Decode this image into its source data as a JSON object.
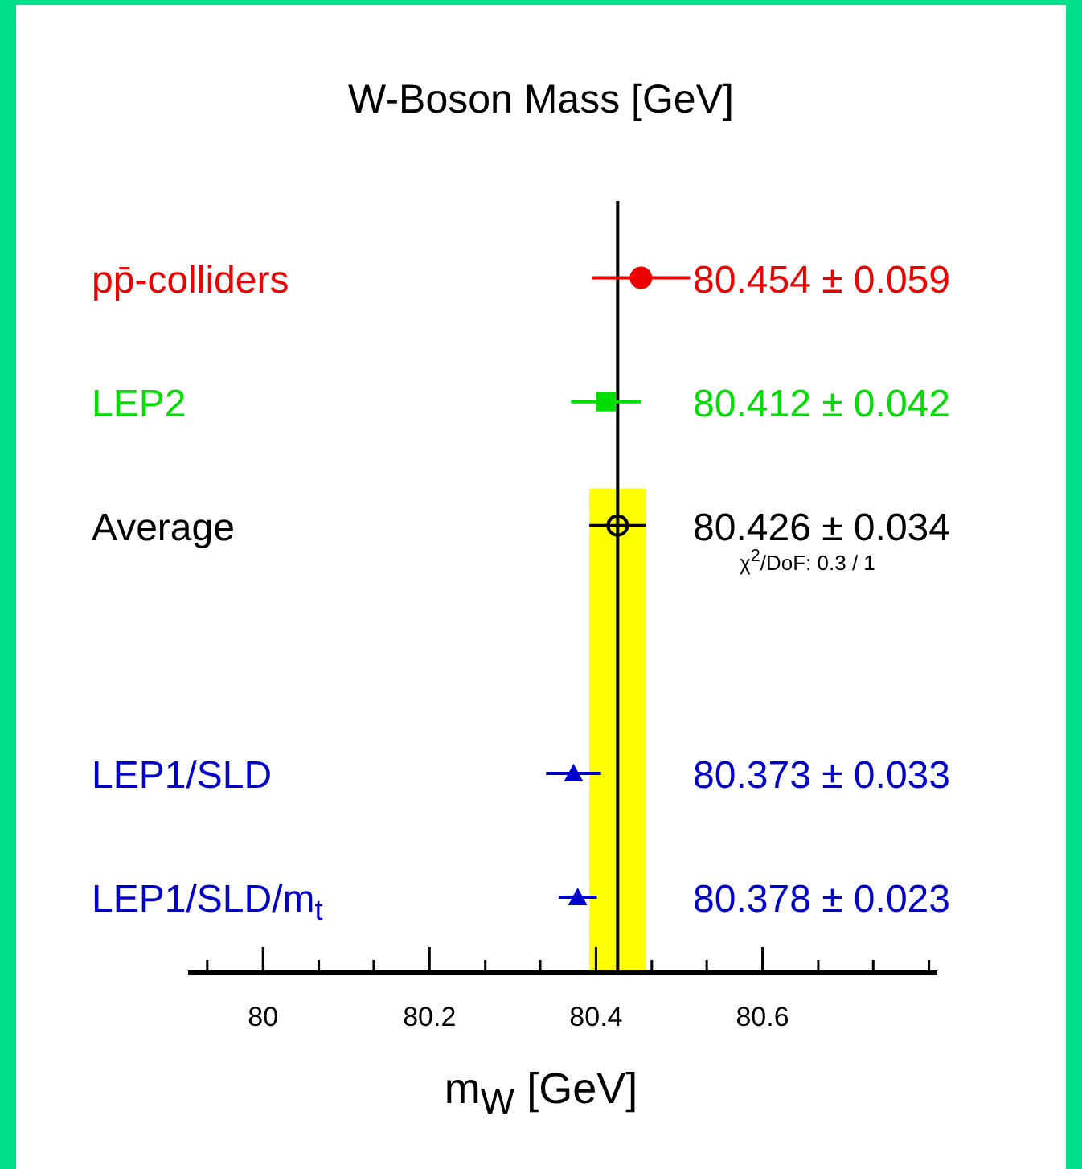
{
  "chart_data": {
    "type": "scatter",
    "orientation": "horizontal",
    "title": "W-Boson Mass  [GeV]",
    "xlabel": "m$_{W}$  [GeV]",
    "categories": [
      "pp̄-colliders",
      "LEP2",
      "Average",
      null,
      "LEP1/SLD",
      "LEP1/SLD/m$_{t}$"
    ],
    "series": [
      {
        "color": "#ee0000",
        "marker": "circle",
        "values": [
          80.454,
          null,
          null,
          null,
          null,
          null
        ],
        "errors": [
          0.059,
          null,
          null,
          null,
          null,
          null
        ],
        "value_labels": [
          "80.454 ± 0.059",
          null,
          null,
          null,
          null,
          null
        ]
      },
      {
        "color": "#00dd00",
        "marker": "square",
        "values": [
          null,
          80.412,
          null,
          null,
          null,
          null
        ],
        "errors": [
          null,
          0.042,
          null,
          null,
          null,
          null
        ],
        "value_labels": [
          null,
          "80.412 ± 0.042",
          null,
          null,
          null,
          null
        ]
      },
      {
        "color": "#000000",
        "marker": "circle",
        "values": [
          null,
          null,
          80.426,
          null,
          null,
          null
        ],
        "errors": [
          null,
          null,
          0.034,
          null,
          null,
          null
        ],
        "value_labels": [
          null,
          null,
          "80.426 ± 0.034",
          null,
          null,
          null
        ]
      },
      {
        "color": "#0000cc",
        "marker": "triangle",
        "values": [
          null,
          null,
          null,
          null,
          80.373,
          80.378
        ],
        "errors": [
          null,
          null,
          null,
          null,
          0.033,
          0.023
        ],
        "value_labels": [
          null,
          null,
          null,
          null,
          "80.373 ± 0.033",
          "80.378 ± 0.023"
        ]
      }
    ],
    "xlim": [
      79.91,
      80.81
    ],
    "xticks": [
      {
        "value": 79.933,
        "label": null
      },
      80,
      {
        "value": 80.067,
        "label": null
      },
      {
        "value": 80.133,
        "label": null
      },
      80.2,
      {
        "value": 80.267,
        "label": null
      },
      {
        "value": 80.333,
        "label": null
      },
      80.4,
      {
        "value": 80.467,
        "label": null
      },
      {
        "value": 80.533,
        "label": null
      },
      80.6,
      {
        "value": 80.667,
        "label": null
      },
      {
        "value": 80.733,
        "label": null
      },
      {
        "value": 80.8,
        "label": null
      }
    ],
    "ref_lines": [
      {
        "axis": "x",
        "value": 80.426,
        "color": "#000000"
      }
    ],
    "bands": [
      {
        "axis": "x",
        "from": 80.392,
        "to": 80.46,
        "color": "#ffff00"
      }
    ],
    "annotations": [
      "χ$^{2}$/DoF: 0.3 / 1"
    ],
    "grid": false,
    "legend": false
  }
}
